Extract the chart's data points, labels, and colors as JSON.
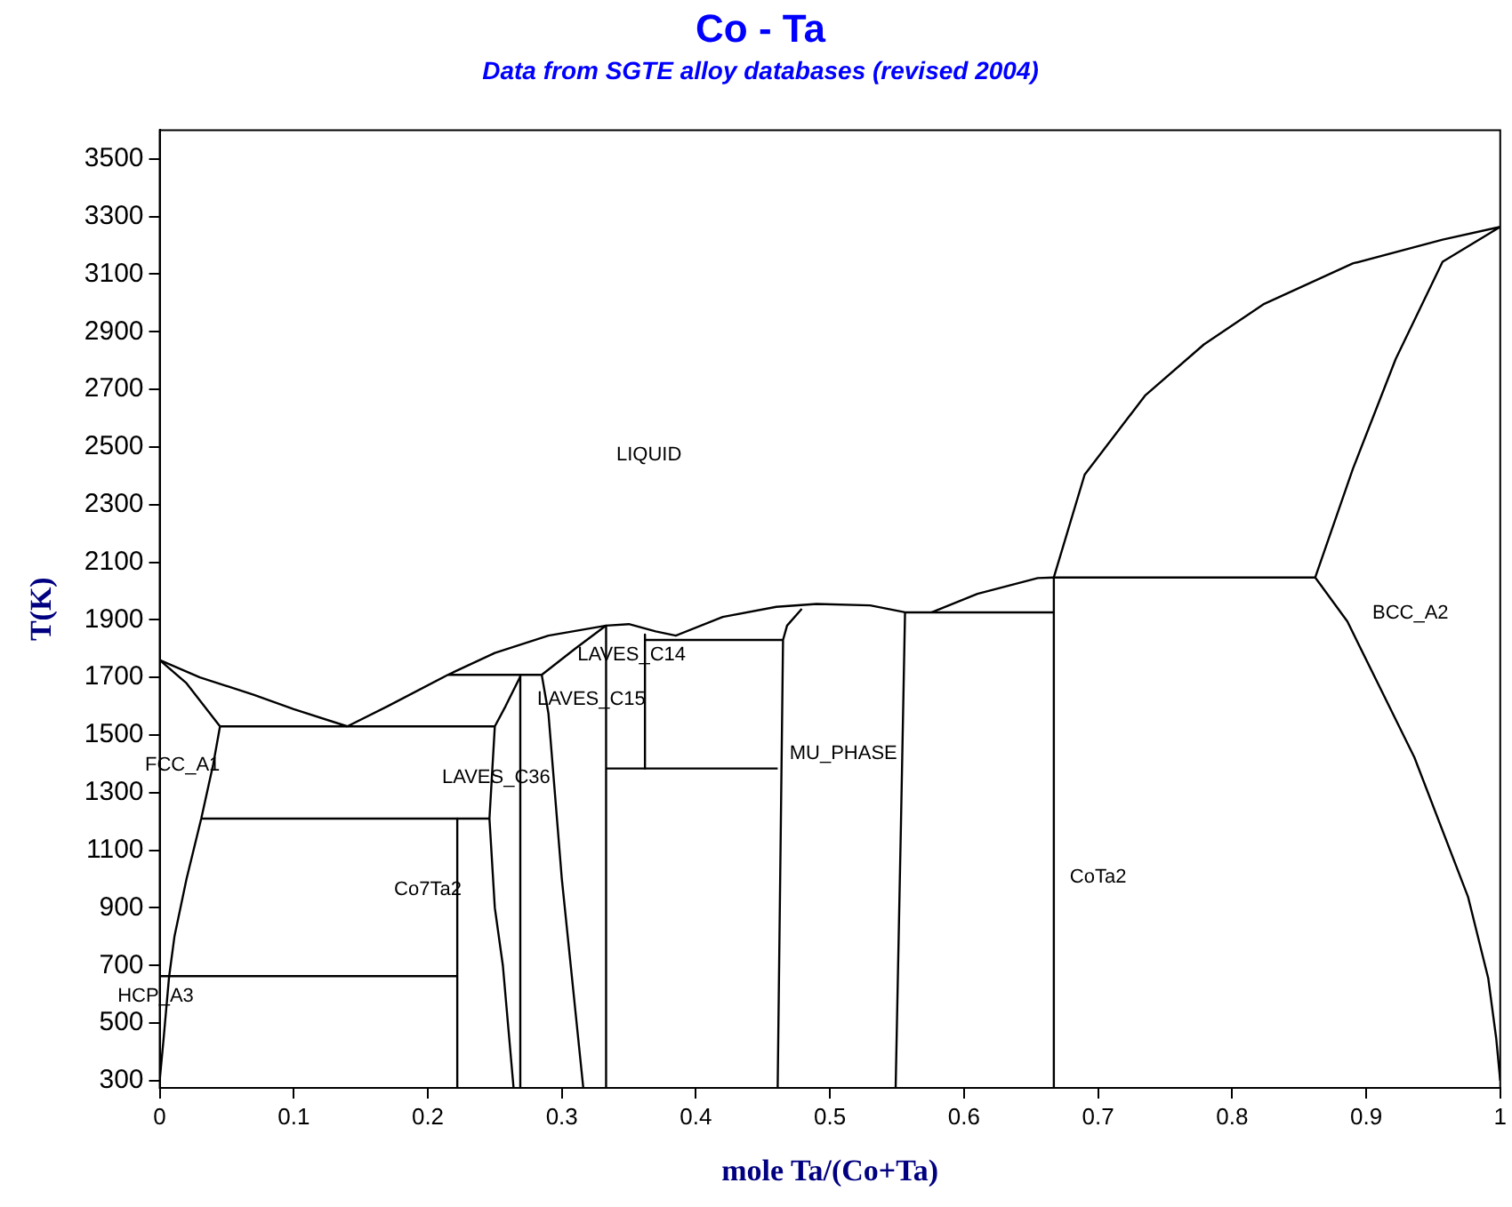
{
  "chart_data": {
    "type": "line",
    "title": "Co - Ta",
    "subtitle": "Data from SGTE alloy databases (revised 2004)",
    "xlabel": "mole Ta/(Co+Ta)",
    "ylabel": "T(K)",
    "xlim": [
      0,
      1
    ],
    "xticks": [
      0,
      0.1,
      0.2,
      0.3,
      0.4,
      0.5,
      0.6,
      0.7,
      0.8,
      0.9,
      1
    ],
    "ylim": [
      275,
      3600
    ],
    "yticks": [
      300,
      500,
      700,
      900,
      1100,
      1300,
      1500,
      1700,
      1900,
      2100,
      2300,
      2500,
      2700,
      2900,
      3100,
      3300,
      3500
    ],
    "grid": false,
    "legend": false,
    "marker": "none",
    "series": [
      {
        "color": "#000000",
        "x": [
          0,
          0.03,
          0.07,
          0.1,
          0.14
        ],
        "values": [
          1760,
          1700,
          1640,
          1590,
          1530
        ]
      },
      {
        "color": "#000000",
        "x": [
          0,
          0.02,
          0.045
        ],
        "values": [
          1760,
          1680,
          1530
        ]
      },
      {
        "color": "#000000",
        "x": [
          0.045,
          0.04,
          0.031,
          0.02,
          0.011,
          0.007,
          0.003,
          0
        ],
        "values": [
          1530,
          1400,
          1210,
          1000,
          800,
          660,
          450,
          300
        ]
      },
      {
        "color": "#000000",
        "x": [
          0.045,
          0.25
        ],
        "values": [
          1530,
          1530
        ]
      },
      {
        "color": "#000000",
        "x": [
          0.031,
          0.246
        ],
        "values": [
          1210,
          1210
        ]
      },
      {
        "color": "#000000",
        "x": [
          0,
          0.222
        ],
        "values": [
          663,
          663
        ]
      },
      {
        "color": "#000000",
        "x": [
          0.222,
          0.222
        ],
        "values": [
          1210,
          275
        ]
      },
      {
        "color": "#000000",
        "x": [
          0.269,
          0.258,
          0.25,
          0.246,
          0.25,
          0.256,
          0.264
        ],
        "values": [
          1703,
          1600,
          1530,
          1210,
          900,
          700,
          275
        ]
      },
      {
        "color": "#000000",
        "x": [
          0.215,
          0.285
        ],
        "values": [
          1709,
          1709
        ]
      },
      {
        "color": "#000000",
        "x": [
          0.269,
          0.269
        ],
        "values": [
          1709,
          275
        ]
      },
      {
        "color": "#000000",
        "x": [
          0.285,
          0.29,
          0.3,
          0.316
        ],
        "values": [
          1709,
          1575,
          1000,
          275
        ]
      },
      {
        "color": "#000000",
        "x": [
          0.285,
          0.31,
          0.333
        ],
        "values": [
          1709,
          1800,
          1880
        ]
      },
      {
        "color": "#000000",
        "x": [
          0.333,
          0.333
        ],
        "values": [
          1880,
          275
        ]
      },
      {
        "color": "#000000",
        "x": [
          0.362,
          0.362
        ],
        "values": [
          1849,
          1384
        ]
      },
      {
        "color": "#000000",
        "x": [
          0.333,
          0.461
        ],
        "values": [
          1384,
          1384
        ]
      },
      {
        "color": "#000000",
        "x": [
          0.362,
          0.465
        ],
        "values": [
          1830,
          1830
        ]
      },
      {
        "color": "#000000",
        "x": [
          0.14,
          0.17,
          0.215,
          0.25,
          0.29,
          0.333,
          0.35,
          0.37,
          0.385,
          0.42,
          0.46,
          0.49,
          0.53,
          0.556,
          0.667
        ],
        "values": [
          1530,
          1600,
          1709,
          1785,
          1845,
          1880,
          1885,
          1860,
          1845,
          1910,
          1945,
          1955,
          1950,
          1926,
          1926
        ]
      },
      {
        "color": "#000000",
        "x": [
          0.479,
          0.468,
          0.465,
          0.461
        ],
        "values": [
          1938,
          1880,
          1830,
          275
        ]
      },
      {
        "color": "#000000",
        "x": [
          0.556,
          0.553,
          0.549
        ],
        "values": [
          1926,
          1200,
          275
        ]
      },
      {
        "color": "#000000",
        "x": [
          1,
          0.997,
          0.991,
          0.976,
          0.936,
          0.886,
          0.862,
          0.667,
          0.655,
          0.61,
          0.576
        ],
        "values": [
          300,
          447,
          657,
          938,
          1422,
          1894,
          2047,
          2047,
          2045,
          1990,
          1926
        ]
      },
      {
        "color": "#000000",
        "x": [
          0.667,
          0.667,
          0.69,
          0.735,
          0.779,
          0.824,
          0.89,
          0.957,
          1,
          0.957,
          0.922,
          0.89,
          0.862
        ],
        "values": [
          275,
          2047,
          2404,
          2678,
          2856,
          2997,
          3137,
          3220,
          3264,
          3143,
          2805,
          2423,
          2047
        ]
      }
    ],
    "annotations": [
      "LIQUID",
      "FCC_A1",
      "HCP_A3",
      "LAVES_C36",
      "Co7Ta2",
      "LAVES_C15",
      "LAVES_C14",
      "MU_PHASE",
      "CoTa2",
      "BCC_A2"
    ]
  }
}
